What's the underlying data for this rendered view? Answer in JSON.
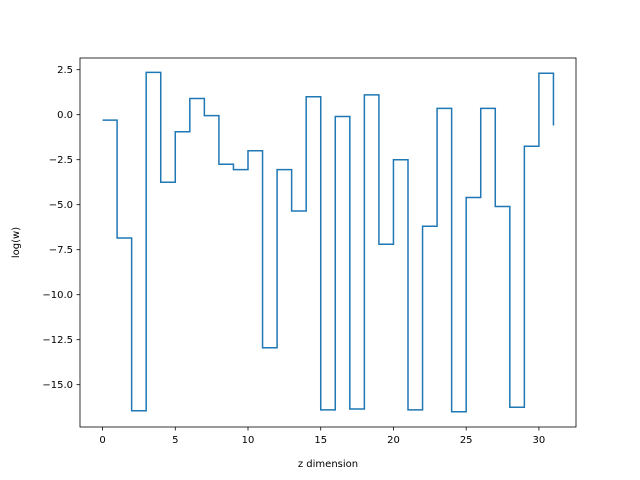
{
  "chart_data": {
    "type": "line",
    "drawstyle": "steps-post",
    "title": "",
    "xlabel": "z dimension",
    "ylabel": "log(w)",
    "xlim": [
      -1.55,
      32.55
    ],
    "ylim": [
      -17.35,
      3.15
    ],
    "xticks": [
      0,
      5,
      10,
      15,
      20,
      25,
      30
    ],
    "xtick_labels": [
      "0",
      "5",
      "10",
      "15",
      "20",
      "25",
      "30"
    ],
    "yticks": [
      2.5,
      0.0,
      -2.5,
      -5.0,
      -7.5,
      -10.0,
      -12.5,
      -15.0
    ],
    "ytick_labels": [
      "2.5",
      "0.0",
      "−2.5",
      "−5.0",
      "−7.5",
      "−10.0",
      "−12.5",
      "−15.0"
    ],
    "grid": false,
    "series": [
      {
        "color": "#1f77b4",
        "x": [
          0,
          1,
          2,
          3,
          4,
          5,
          6,
          7,
          8,
          9,
          10,
          11,
          12,
          13,
          14,
          15,
          16,
          17,
          18,
          19,
          20,
          21,
          22,
          23,
          24,
          25,
          26,
          27,
          28,
          29,
          30,
          31
        ],
        "values": [
          -0.3,
          -6.85,
          -16.45,
          2.35,
          -3.75,
          -0.95,
          0.9,
          -0.05,
          -2.75,
          -3.05,
          -2.0,
          -12.95,
          -3.05,
          -5.35,
          1.0,
          -16.4,
          -0.1,
          -16.35,
          1.1,
          -7.2,
          -2.5,
          -16.4,
          -6.2,
          0.35,
          -16.5,
          -4.6,
          0.35,
          -5.1,
          -16.25,
          -1.75,
          2.3,
          -0.6
        ]
      }
    ]
  }
}
